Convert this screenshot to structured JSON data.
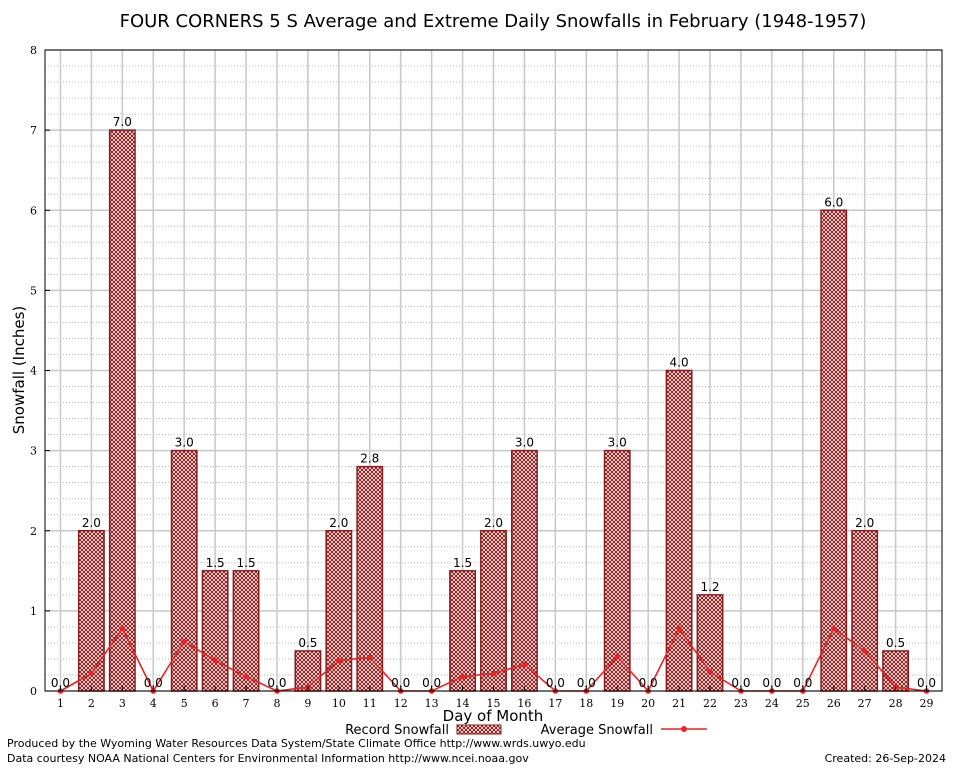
{
  "chart_data": {
    "type": "bar",
    "title": "FOUR CORNERS 5 S Average and Extreme Daily Snowfalls in February (1948-1957)",
    "xlabel": "Day of Month",
    "ylabel": "Snowfall (Inches)",
    "ylim": [
      0,
      8
    ],
    "yticks": [
      "0",
      "1",
      "2",
      "3",
      "4",
      "5",
      "6",
      "7",
      "8"
    ],
    "grid": true,
    "legend_placement": "bottom",
    "categories": [
      "1",
      "2",
      "3",
      "4",
      "5",
      "6",
      "7",
      "8",
      "9",
      "10",
      "11",
      "12",
      "13",
      "14",
      "15",
      "16",
      "17",
      "18",
      "19",
      "20",
      "21",
      "22",
      "23",
      "24",
      "25",
      "26",
      "27",
      "28",
      "29"
    ],
    "series": [
      {
        "name": "Record Snowfall",
        "kind": "bar",
        "color": "#8b1a1a",
        "values": [
          0.0,
          2.0,
          7.0,
          0.0,
          3.0,
          1.5,
          1.5,
          0.0,
          0.5,
          2.0,
          2.8,
          0.0,
          0.0,
          1.5,
          2.0,
          3.0,
          0.0,
          0.0,
          3.0,
          0.0,
          4.0,
          1.2,
          0.0,
          0.0,
          0.0,
          6.0,
          2.0,
          0.5,
          0.0
        ],
        "labels": [
          "0.0",
          "2.0",
          "7.0",
          "0.0",
          "3.0",
          "1.5",
          "1.5",
          "0.0",
          "0.5",
          "2.0",
          "2.8",
          "0.0",
          "0.0",
          "1.5",
          "2.0",
          "3.0",
          "0.0",
          "0.0",
          "3.0",
          "0.0",
          "4.0",
          "1.2",
          "0.0",
          "0.0",
          "0.0",
          "6.0",
          "2.0",
          "0.5",
          "0.0"
        ]
      },
      {
        "name": "Average Snowfall",
        "kind": "line",
        "color": "#ee2222",
        "values": [
          0.0,
          0.22,
          0.78,
          0.0,
          0.62,
          0.38,
          0.18,
          0.0,
          0.05,
          0.38,
          0.42,
          0.0,
          0.0,
          0.18,
          0.22,
          0.33,
          0.0,
          0.0,
          0.43,
          0.0,
          0.78,
          0.24,
          0.0,
          0.0,
          0.0,
          0.78,
          0.5,
          0.05,
          0.0
        ]
      }
    ]
  },
  "footer": {
    "credit_line1": "Produced by the Wyoming Water Resources Data System/State Climate Office http://www.wrds.uwyo.edu",
    "credit_line2": "Data courtesy NOAA National Centers for Environmental Information http://www.ncei.noaa.gov",
    "created": "Created:  26-Sep-2024"
  }
}
